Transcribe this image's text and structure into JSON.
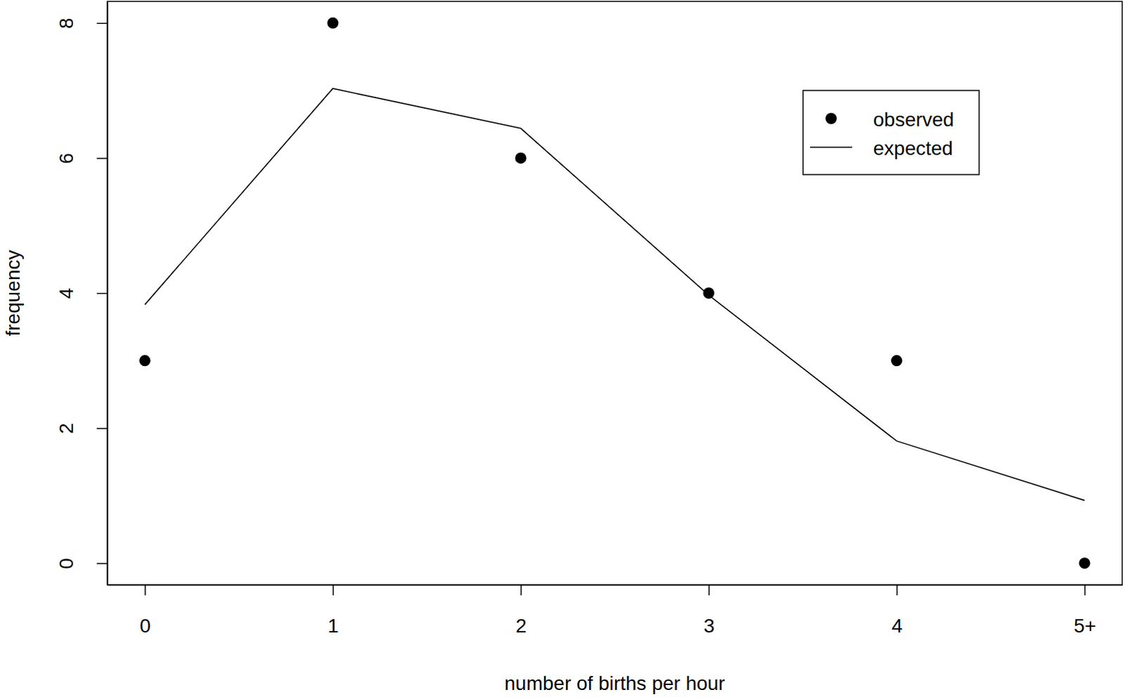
{
  "chart_data": {
    "type": "line",
    "x": [
      0,
      1,
      2,
      3,
      4,
      5
    ],
    "series": [
      {
        "name": "observed",
        "type": "scatter",
        "marker": "circle",
        "color": "#000000",
        "values": [
          3,
          8,
          6,
          4,
          3,
          0
        ]
      },
      {
        "name": "expected",
        "type": "line",
        "line_style": "solid",
        "color": "#000000",
        "values": [
          3.83,
          7.03,
          6.44,
          3.97,
          1.81,
          0.93
        ]
      }
    ],
    "xlabel": "number of births per hour",
    "ylabel": "frequency",
    "xlim": [
      -0.2,
      5.2
    ],
    "ylim": [
      -0.32,
      8.32
    ],
    "xticks": [
      0,
      1,
      2,
      3,
      4,
      {
        "value": 5,
        "label": "5+"
      }
    ],
    "yticks": [
      0,
      2,
      4,
      6,
      8
    ],
    "legend": "top-right"
  }
}
